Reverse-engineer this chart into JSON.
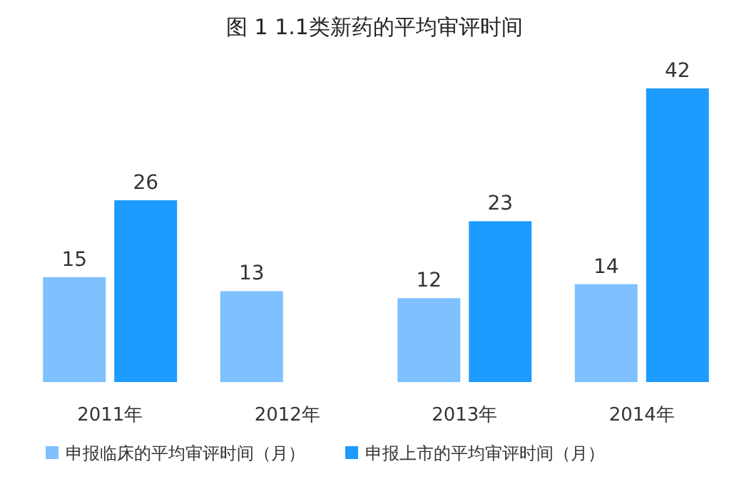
{
  "chart_data": {
    "type": "bar",
    "title": "图 1  1.1类新药的平均审评时间",
    "categories": [
      "2011年",
      "2012年",
      "2013年",
      "2014年"
    ],
    "series": [
      {
        "name": "申报临床的平均审评时间（月）",
        "color": "#7fc1ff",
        "values": [
          15,
          13,
          12,
          14
        ]
      },
      {
        "name": "申报上市的平均审评时间（月）",
        "color": "#1e9bff",
        "values": [
          26,
          null,
          23,
          42
        ]
      }
    ],
    "data_labels": true,
    "legend": "bottom"
  }
}
